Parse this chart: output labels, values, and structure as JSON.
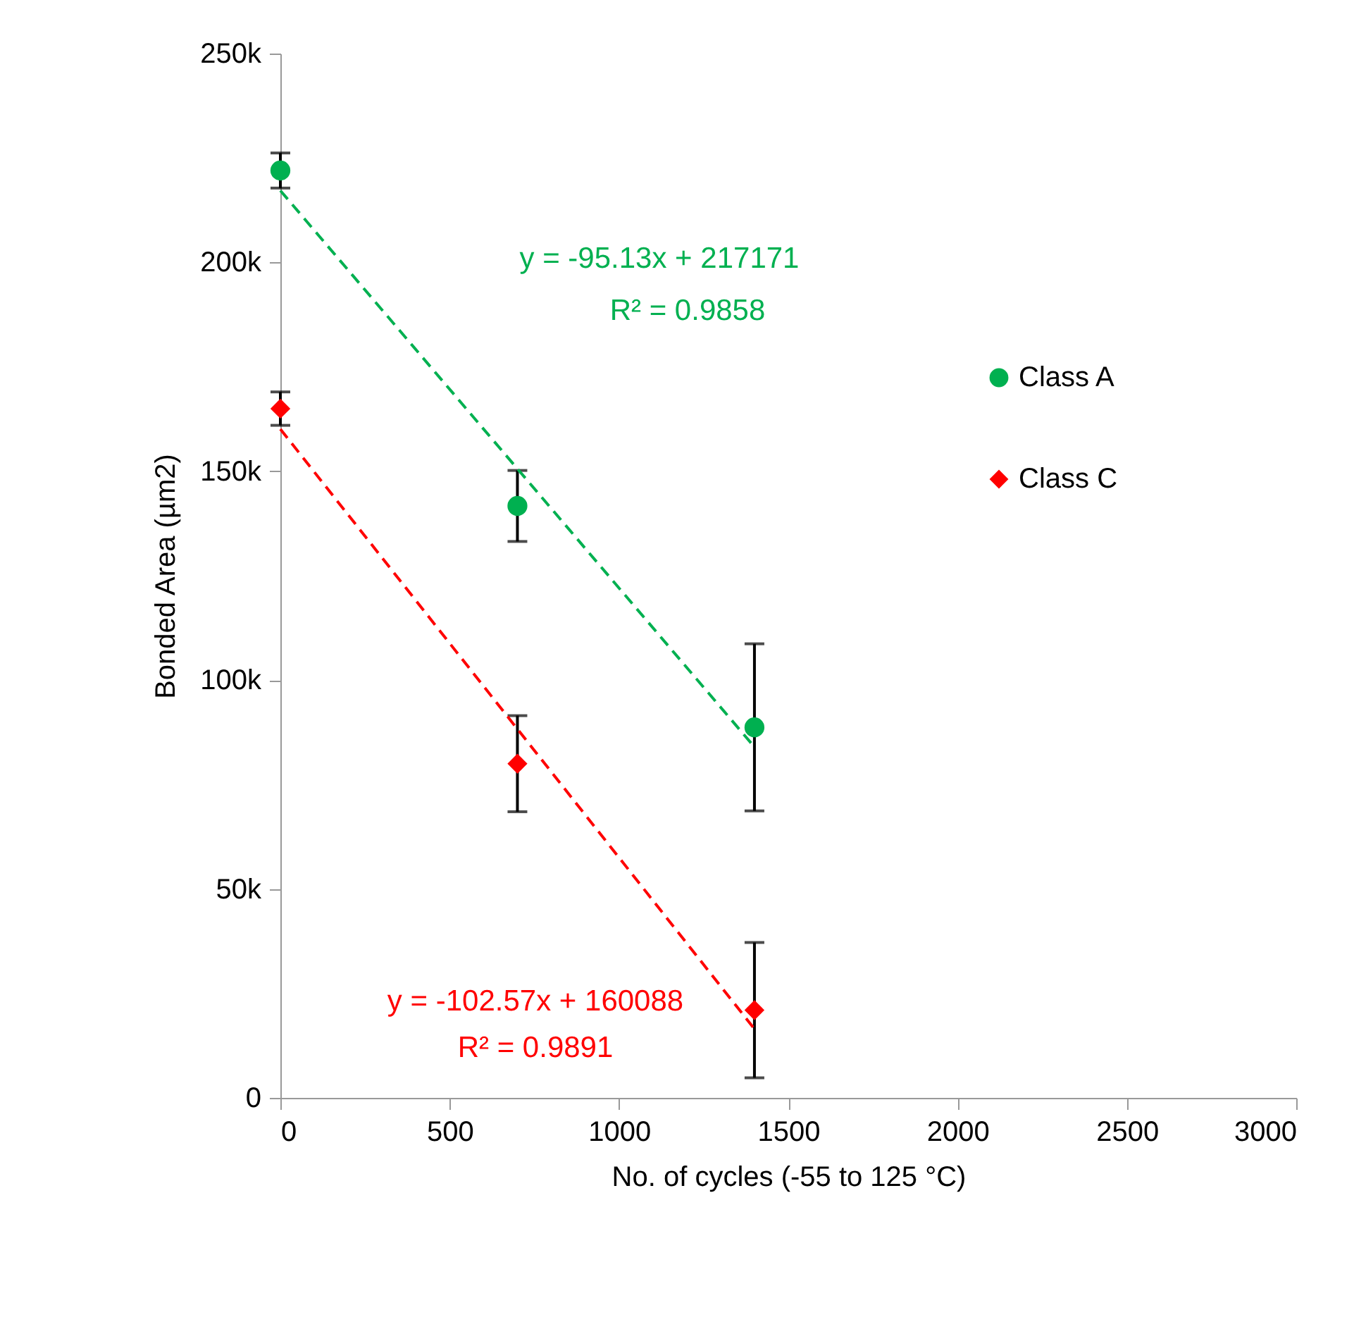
{
  "chart_data": {
    "type": "scatter",
    "xlabel": "No. of cycles (-55 to 125 °C)",
    "ylabel": "Bonded Area (µm2)",
    "xlim": [
      0,
      3000
    ],
    "xticks": [
      0,
      500,
      1000,
      1500,
      2000,
      2500,
      3000
    ],
    "ylim": [
      0,
      250000
    ],
    "yticks": [
      {
        "value": 0,
        "label": "0"
      },
      {
        "value": 50000,
        "label": "50k"
      },
      {
        "value": 100000,
        "label": "100k"
      },
      {
        "value": 150000,
        "label": "150k"
      },
      {
        "value": 200000,
        "label": "200k"
      },
      {
        "value": 250000,
        "label": "250k"
      }
    ],
    "grid": false,
    "legend": "right",
    "series": [
      {
        "name": "Class A",
        "marker": "circle",
        "color": "#00b050",
        "x": [
          0,
          700,
          1400
        ],
        "values": [
          222000,
          141700,
          88700
        ],
        "errors": [
          4200,
          8500,
          20000
        ]
      },
      {
        "name": "Class C",
        "marker": "diamond",
        "color": "#ff0000",
        "x": [
          0,
          700,
          1400
        ],
        "values": [
          165000,
          80000,
          21000
        ],
        "errors": [
          4000,
          11500,
          16200
        ]
      },
      {
        "type": "line",
        "line_style": "dashed",
        "marker": "none",
        "color": "#00b050",
        "x": [
          0,
          1400
        ],
        "values": [
          217200,
          84000
        ]
      },
      {
        "type": "line",
        "line_style": "dashed",
        "marker": "none",
        "color": "#ff0000",
        "x": [
          0,
          1400
        ],
        "values": [
          160100,
          16500
        ]
      }
    ],
    "annotations": [
      "y = -95.13x + 217171",
      "R² = 0.9858",
      "y = -102.57x + 160088",
      "R² = 0.9891"
    ]
  }
}
